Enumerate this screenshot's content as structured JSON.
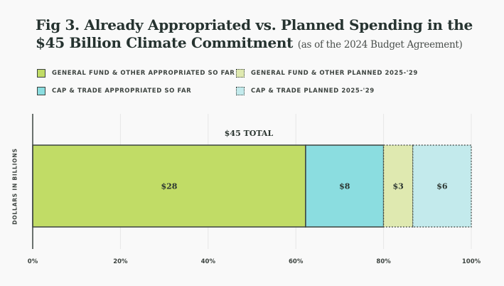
{
  "chart_data": {
    "type": "bar",
    "orientation": "horizontal-stacked-percent",
    "title": "Fig 3. Already Appropriated vs. Planned Spending in the $45 Billion Climate Commitment",
    "subtitle": "(as of the 2024 Budget Agreement)",
    "title_line1": "Fig 3. Already Appropriated vs. Planned Spending in the",
    "title_line2": "$45 Billion Climate Commitment",
    "ylabel": "DOLLARS IN BILLIONS",
    "xlabel": "",
    "xlim": [
      0,
      100
    ],
    "x_ticks": [
      "0%",
      "20%",
      "40%",
      "60%",
      "80%",
      "100%"
    ],
    "x_tick_values": [
      0,
      20,
      40,
      60,
      80,
      100
    ],
    "grid": true,
    "total_label": "$45 TOTAL",
    "total_value": 45,
    "legend_position": "top-left",
    "series": [
      {
        "name": "GENERAL FUND & OTHER APPROPRIATED SO FAR",
        "value": 28,
        "label": "$28",
        "color": "#c1dc66",
        "style": "solid"
      },
      {
        "name": "CAP & TRADE APPROPRIATED SO FAR",
        "value": 8,
        "label": "$8",
        "color": "#8bdde0",
        "style": "solid"
      },
      {
        "name": "GENERAL FUND & OTHER PLANNED 2025-'29",
        "value": 3,
        "label": "$3",
        "color": "#dfe9b0",
        "style": "dotted"
      },
      {
        "name": "CAP & TRADE PLANNED 2025-'29",
        "value": 6,
        "label": "$6",
        "color": "#c3eaec",
        "style": "dotted"
      }
    ]
  }
}
